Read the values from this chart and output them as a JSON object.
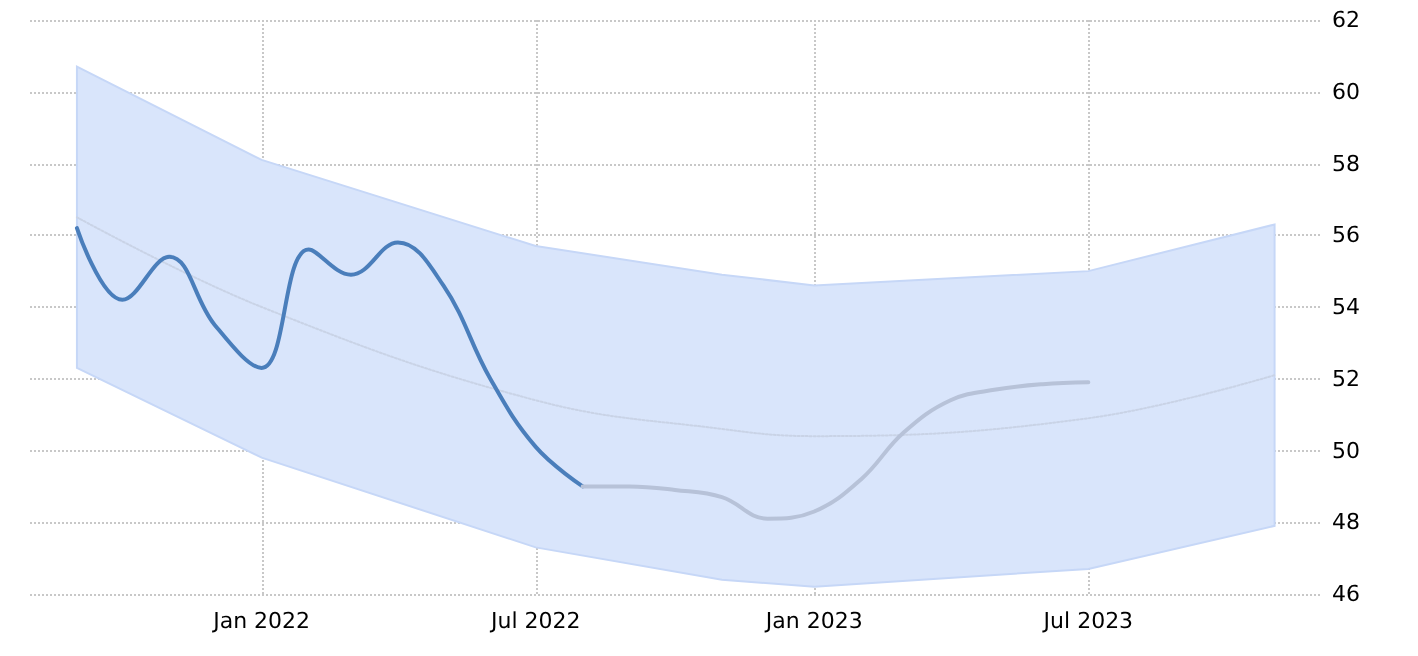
{
  "chart_data": {
    "type": "line",
    "xlim": [
      "2021-08-01",
      "2023-12-01"
    ],
    "ylim": [
      46,
      62
    ],
    "xticks": [
      {
        "value": "2022-01",
        "label": "Jan 2022"
      },
      {
        "value": "2022-07",
        "label": "Jul 2022"
      },
      {
        "value": "2023-01",
        "label": "Jan 2023"
      },
      {
        "value": "2023-07",
        "label": "Jul 2023"
      }
    ],
    "yticks": [
      46,
      48,
      50,
      52,
      54,
      56,
      58,
      60,
      62
    ],
    "series": [
      {
        "color": "#c9d3e6",
        "line_style": "dotted",
        "x": [
          "2021-09",
          "2022-01",
          "2022-07",
          "2022-11",
          "2023-01",
          "2023-07",
          "2023-11"
        ],
        "values": [
          56.5,
          54.0,
          51.4,
          50.6,
          50.4,
          50.9,
          52.1
        ],
        "lower": [
          52.3,
          49.8,
          47.3,
          46.4,
          46.2,
          46.7,
          47.9
        ],
        "upper": [
          60.7,
          58.1,
          55.7,
          54.9,
          54.6,
          55.0,
          56.3
        ]
      },
      {
        "color": "#4a7ebb",
        "line_style": "solid",
        "x": [
          "2021-09",
          "2021-10",
          "2021-11",
          "2021-12",
          "2022-01",
          "2022-02",
          "2022-03",
          "2022-04",
          "2022-05",
          "2022-06",
          "2022-07",
          "2022-08"
        ],
        "values": [
          56.2,
          54.2,
          55.4,
          53.5,
          52.3,
          55.6,
          54.9,
          55.8,
          54.6,
          52.0,
          50.1,
          49.0
        ]
      },
      {
        "color": "#b7c2d8",
        "line_style": "solid",
        "x": [
          "2022-08",
          "2022-09",
          "2022-10",
          "2022-11",
          "2022-12",
          "2023-01",
          "2023-02",
          "2023-03",
          "2023-04",
          "2023-05",
          "2023-06",
          "2023-07"
        ],
        "values": [
          49.0,
          49.0,
          48.9,
          48.7,
          48.1,
          48.3,
          49.2,
          50.5,
          51.4,
          51.7,
          51.85,
          51.9
        ]
      }
    ],
    "grid": true,
    "marker": "none"
  }
}
